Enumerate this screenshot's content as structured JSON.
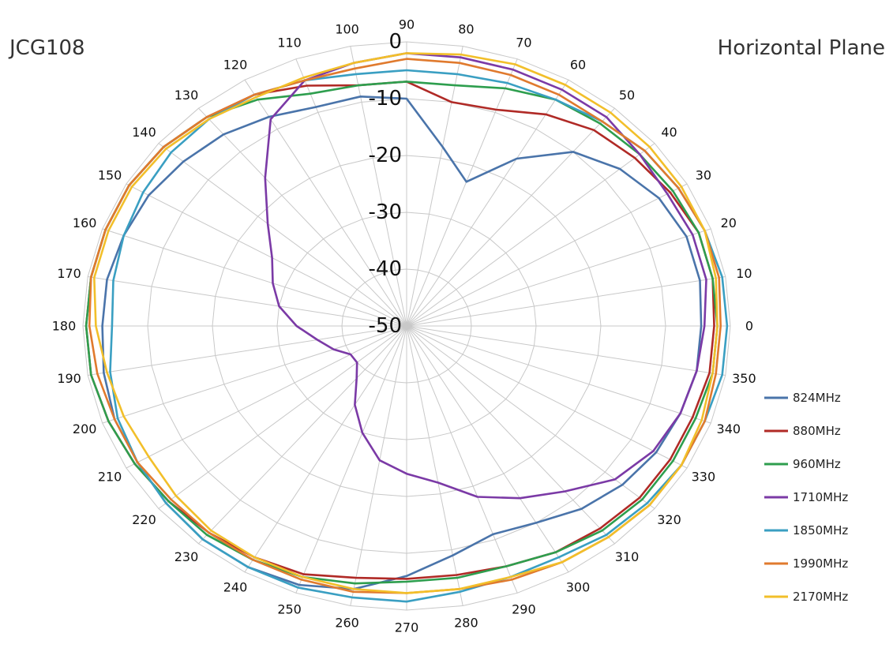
{
  "titles": {
    "left": "JCG108",
    "right": "Horizontal Plane"
  },
  "chart_data": {
    "type": "line",
    "subtype": "polar-radar",
    "title": "JCG108",
    "subtitle": "Horizontal Plane",
    "angles": [
      0,
      10,
      20,
      30,
      40,
      50,
      60,
      70,
      80,
      90,
      100,
      110,
      120,
      130,
      140,
      150,
      160,
      170,
      180,
      190,
      200,
      210,
      220,
      230,
      240,
      250,
      260,
      270,
      280,
      290,
      300,
      310,
      320,
      330,
      340,
      350
    ],
    "angle_tick_labels": [
      "0",
      "10",
      "20",
      "30",
      "40",
      "50",
      "60",
      "70",
      "80",
      "90",
      "100",
      "110",
      "120",
      "130",
      "140",
      "150",
      "160",
      "170",
      "180",
      "190",
      "200",
      "210",
      "220",
      "230",
      "240",
      "250",
      "260",
      "270",
      "280",
      "290",
      "300",
      "310",
      "320",
      "330",
      "340",
      "350"
    ],
    "radial_range": [
      -50,
      0
    ],
    "radial_ticks": [
      "0",
      "-10",
      "-20",
      "-30",
      "-40",
      "-50"
    ],
    "grid": true,
    "legend_position": "bottom-right",
    "series": [
      {
        "name": "824MHz",
        "color": "#4a74aa",
        "values": [
          -4.5,
          -4,
          -4,
          -5,
          -7,
          -10,
          -16,
          -23,
          -18,
          -10,
          -9,
          -9,
          -7.5,
          -6,
          -5,
          -4,
          -3.5,
          -3,
          -3,
          -2.5,
          -2,
          -2,
          -1.5,
          -1,
          -1,
          -1.5,
          -3,
          -6,
          -9,
          -11,
          -10,
          -8,
          -6.5,
          -5.5,
          -5,
          -4.5
        ]
      },
      {
        "name": "880MHz",
        "color": "#b02a26",
        "values": [
          -2.5,
          -2,
          -2,
          -3,
          -4,
          -5,
          -7,
          -9.5,
          -10,
          -7,
          -7,
          -5,
          -3,
          -2,
          -1,
          -0.5,
          -0.5,
          -0.5,
          -0.5,
          -0.5,
          -1,
          -1.5,
          -2,
          -2.5,
          -3,
          -3.5,
          -5,
          -5.5,
          -5.5,
          -5,
          -4,
          -3.5,
          -3,
          -3,
          -3,
          -2.5
        ]
      },
      {
        "name": "960MHz",
        "color": "#2e9e4e",
        "values": [
          -2,
          -2,
          -2,
          -2.5,
          -3,
          -3.5,
          -4,
          -5.5,
          -7,
          -7,
          -7,
          -6.5,
          -4,
          -2,
          -1,
          -0.5,
          -0.5,
          -0.5,
          -0.5,
          -0.5,
          -1,
          -1.5,
          -2,
          -2,
          -2.5,
          -3,
          -4,
          -5,
          -5,
          -5,
          -4,
          -3,
          -2.5,
          -2.5,
          -2.5,
          -2
        ]
      },
      {
        "name": "1710MHz",
        "color": "#7b3aa6",
        "values": [
          -4,
          -3,
          -3,
          -3.5,
          -3,
          -2,
          -2,
          -2,
          -2,
          -2,
          -3,
          -4,
          -8,
          -16,
          -22,
          -26,
          -28,
          -30,
          -33,
          -36,
          -38,
          -40,
          -40,
          -38,
          -34,
          -30,
          -26,
          -24,
          -22,
          -18,
          -15,
          -12,
          -8,
          -6,
          -5,
          -4.5
        ]
      },
      {
        "name": "1850MHz",
        "color": "#3a9fc2",
        "values": [
          -0.5,
          -0.5,
          -1,
          -1.5,
          -2,
          -3,
          -4,
          -4.5,
          -5,
          -5,
          -5,
          -4,
          -3,
          -2.5,
          -2.5,
          -3,
          -3.5,
          -4,
          -4.5,
          -3.5,
          -2.5,
          -2,
          -1.5,
          -1,
          -1,
          -1,
          -1.5,
          -1.5,
          -2.5,
          -3,
          -3,
          -2,
          -1.5,
          -1,
          -1,
          -0.5
        ]
      },
      {
        "name": "1990MHz",
        "color": "#e07a2e",
        "values": [
          -1.5,
          -1,
          -1,
          -1.5,
          -2,
          -3,
          -3,
          -3,
          -3,
          -3,
          -4,
          -4,
          -3,
          -2,
          -1,
          -0.5,
          -0.5,
          -0.5,
          -1,
          -1.5,
          -2,
          -2,
          -2.5,
          -2.5,
          -2.5,
          -2.5,
          -2.5,
          -3,
          -3,
          -2.5,
          -2,
          -1.5,
          -1,
          -1,
          -1,
          -1.5
        ]
      },
      {
        "name": "2170MHz",
        "color": "#f2bf2a",
        "values": [
          -2,
          -1.5,
          -1,
          -1,
          -1,
          -1,
          -1,
          -1,
          -1.5,
          -2,
          -3,
          -3.5,
          -3.5,
          -2.5,
          -1.5,
          -1,
          -1,
          -1,
          -2,
          -3,
          -3.5,
          -4,
          -3.5,
          -3,
          -3,
          -3,
          -3,
          -3,
          -3,
          -3,
          -2,
          -1.5,
          -1,
          -1,
          -1.5,
          -2
        ]
      }
    ]
  }
}
